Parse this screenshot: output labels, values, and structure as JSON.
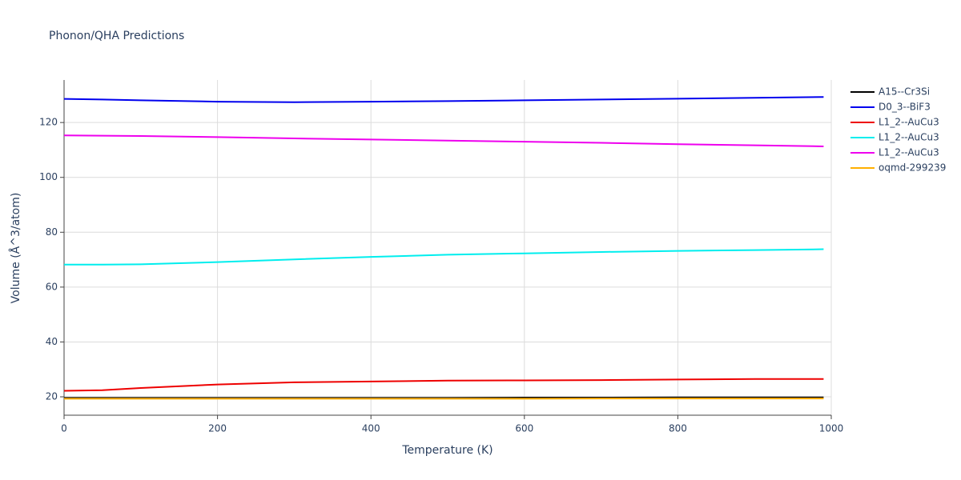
{
  "chart_data": {
    "type": "line",
    "title": "Phonon/QHA Predictions",
    "x_label": "Temperature (K)",
    "y_label": "Volume (Å^3/atom)",
    "x": [
      0,
      50,
      100,
      200,
      300,
      400,
      500,
      600,
      700,
      800,
      900,
      990
    ],
    "series": [
      {
        "name": "A15--Cr3Si",
        "color": "#000000",
        "values": [
          19.6,
          19.6,
          19.6,
          19.6,
          19.6,
          19.6,
          19.6,
          19.7,
          19.7,
          19.8,
          19.8,
          19.8
        ]
      },
      {
        "name": "D0_3--BiF3",
        "color": "#0000ee",
        "values": [
          128.6,
          128.4,
          128.1,
          127.6,
          127.4,
          127.6,
          127.8,
          128.1,
          128.4,
          128.7,
          129.0,
          129.3
        ]
      },
      {
        "name": "L1_2--AuCu3",
        "color": "#ee0000",
        "values": [
          22.2,
          22.4,
          23.2,
          24.5,
          25.3,
          25.6,
          25.9,
          26.0,
          26.1,
          26.3,
          26.5,
          26.5
        ]
      },
      {
        "name": "L1_2--AuCu3",
        "color": "#00eeee",
        "values": [
          68.2,
          68.2,
          68.3,
          69.1,
          70.1,
          71.0,
          71.8,
          72.3,
          72.8,
          73.2,
          73.5,
          73.8
        ]
      },
      {
        "name": "L1_2--AuCu3",
        "color": "#ee00ee",
        "values": [
          115.3,
          115.2,
          115.1,
          114.7,
          114.2,
          113.8,
          113.4,
          113.0,
          112.6,
          112.1,
          111.7,
          111.3
        ]
      },
      {
        "name": "oqmd-299239",
        "color": "#ffb000",
        "values": [
          19.3,
          19.3,
          19.3,
          19.3,
          19.3,
          19.3,
          19.3,
          19.3,
          19.4,
          19.4,
          19.4,
          19.4
        ]
      }
    ],
    "xlim": [
      0,
      1000
    ],
    "xticks": [
      0,
      200,
      400,
      600,
      800,
      1000
    ],
    "ylim": [
      13.3,
      135.5
    ],
    "yticks": [
      20,
      40,
      60,
      80,
      100,
      120
    ],
    "grid": true
  }
}
